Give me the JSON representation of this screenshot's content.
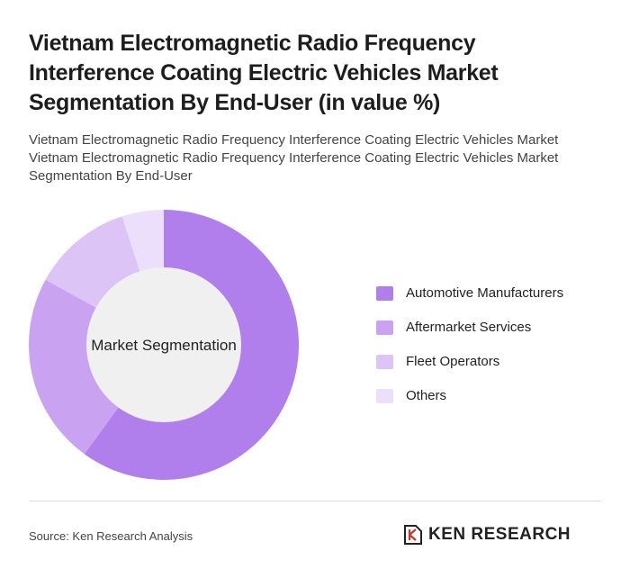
{
  "header": {
    "title": "Vietnam Electromagnetic Radio Frequency Interference Coating Electric Vehicles Market Segmentation By End-User (in value %)",
    "subtitle": "Vietnam Electromagnetic Radio Frequency Interference Coating Electric Vehicles Market Vietnam Electromagnetic Radio Frequency Interference Coating Electric Vehicles Market Segmentation By End-User"
  },
  "chart_data": {
    "type": "pie",
    "donut": true,
    "center_label": "Market Segmentation",
    "categories": [
      "Automotive Manufacturers",
      "Aftermarket Services",
      "Fleet Operators",
      "Others"
    ],
    "values": [
      60,
      23,
      12,
      5
    ],
    "colors": [
      "#b07fec",
      "#c9a3f2",
      "#dcc4f7",
      "#ecdffb"
    ],
    "legend_position": "right"
  },
  "footer": {
    "source": "Source: Ken Research Analysis",
    "brand": "KEN RESEARCH"
  }
}
